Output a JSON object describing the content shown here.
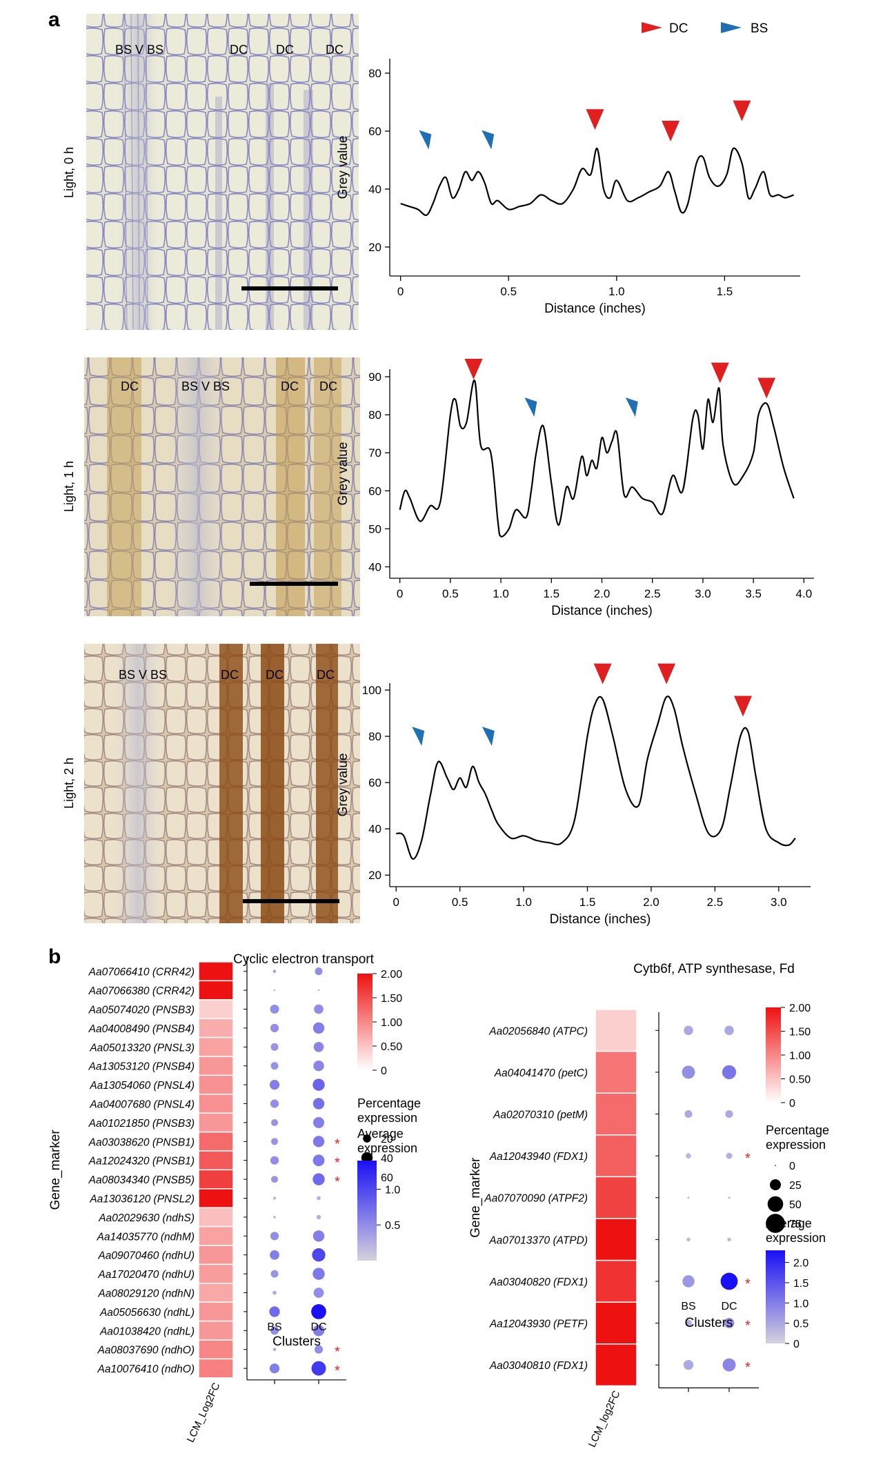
{
  "panel_a_label": "a",
  "panel_b_label": "b",
  "legend": {
    "dc": "DC",
    "bs": "BS",
    "dc_color": "#e02020",
    "bs_color": "#1f6fb5"
  },
  "micrographs": [
    {
      "condition": "Light, 0 h",
      "labels": [
        "BS V BS",
        "DC",
        "DC",
        "DC"
      ],
      "stain": "pale blue-grey"
    },
    {
      "condition": "Light, 1 h",
      "labels": [
        "DC",
        "BS V BS",
        "DC",
        "DC"
      ],
      "stain": "tan-yellow"
    },
    {
      "condition": "Light, 2 h",
      "labels": [
        "BS V BS",
        "DC",
        "DC",
        "DC"
      ],
      "stain": "brown"
    }
  ],
  "chart_data": [
    {
      "type": "line",
      "title": "Light, 0 h",
      "xlabel": "Distance (inches)",
      "ylabel": "Grey value",
      "xlim": [
        -0.05,
        1.85
      ],
      "ylim": [
        10,
        85
      ],
      "xticks": [
        0,
        0.5,
        1.0,
        1.5
      ],
      "xtick_labels": [
        "0",
        "0.5",
        "1.0",
        "1.5"
      ],
      "yticks": [
        20,
        40,
        60,
        80
      ],
      "x": [
        0.0,
        0.04,
        0.08,
        0.12,
        0.15,
        0.18,
        0.21,
        0.24,
        0.27,
        0.3,
        0.33,
        0.36,
        0.39,
        0.42,
        0.45,
        0.5,
        0.55,
        0.6,
        0.65,
        0.7,
        0.75,
        0.8,
        0.84,
        0.88,
        0.91,
        0.94,
        0.97,
        1.0,
        1.05,
        1.1,
        1.15,
        1.2,
        1.24,
        1.27,
        1.3,
        1.33,
        1.37,
        1.4,
        1.43,
        1.47,
        1.51,
        1.54,
        1.58,
        1.61,
        1.64,
        1.68,
        1.71,
        1.75,
        1.78,
        1.82
      ],
      "y": [
        35,
        34,
        33,
        31,
        35,
        41,
        44,
        37,
        40,
        46,
        43,
        46,
        42,
        35,
        36,
        33,
        34,
        35,
        38,
        36,
        35,
        40,
        47,
        45,
        54,
        40,
        37,
        43,
        36,
        37,
        39,
        41,
        46,
        39,
        32,
        35,
        49,
        51,
        44,
        41,
        45,
        54,
        49,
        37,
        40,
        46,
        38,
        38,
        37,
        38
      ],
      "markers": [
        {
          "x": 0.13,
          "y": 57,
          "kind": "BS"
        },
        {
          "x": 0.42,
          "y": 57,
          "kind": "BS"
        },
        {
          "x": 0.9,
          "y": 64,
          "kind": "DC"
        },
        {
          "x": 1.25,
          "y": 60,
          "kind": "DC"
        },
        {
          "x": 1.58,
          "y": 67,
          "kind": "DC"
        }
      ]
    },
    {
      "type": "line",
      "title": "Light, 1 h",
      "xlabel": "Distance (inches)",
      "ylabel": "Grey value",
      "xlim": [
        -0.1,
        4.1
      ],
      "ylim": [
        37,
        92
      ],
      "xticks": [
        0,
        0.5,
        1.0,
        1.5,
        2.0,
        2.5,
        3.0,
        3.5,
        4.0
      ],
      "xtick_labels": [
        "0",
        "0.5",
        "1.0",
        "1.5",
        "2.0",
        "2.5",
        "3.0",
        "3.5",
        "4.0"
      ],
      "yticks": [
        40,
        50,
        60,
        70,
        80,
        90
      ],
      "x": [
        0.0,
        0.05,
        0.1,
        0.2,
        0.3,
        0.4,
        0.5,
        0.55,
        0.6,
        0.66,
        0.74,
        0.8,
        0.9,
        0.97,
        1.0,
        1.08,
        1.15,
        1.25,
        1.3,
        1.35,
        1.42,
        1.5,
        1.57,
        1.65,
        1.72,
        1.8,
        1.85,
        1.9,
        1.95,
        2.0,
        2.05,
        2.1,
        2.15,
        2.22,
        2.3,
        2.4,
        2.5,
        2.6,
        2.7,
        2.8,
        2.9,
        2.95,
        3.0,
        3.05,
        3.1,
        3.16,
        3.2,
        3.3,
        3.4,
        3.5,
        3.55,
        3.63,
        3.7,
        3.8,
        3.9
      ],
      "y": [
        55,
        60,
        58,
        52,
        56,
        57,
        80,
        84,
        77,
        78,
        89,
        72,
        70,
        52,
        48,
        50,
        55,
        53,
        60,
        70,
        77,
        62,
        51,
        61,
        58,
        69,
        64,
        68,
        66,
        74,
        70,
        73,
        75,
        59,
        61,
        58,
        57,
        54,
        64,
        60,
        79,
        80,
        71,
        84,
        78,
        87,
        72,
        62,
        64,
        70,
        80,
        83,
        77,
        66,
        58
      ],
      "markers": [
        {
          "x": 0.73,
          "y": 92,
          "kind": "DC"
        },
        {
          "x": 1.33,
          "y": 82,
          "kind": "BS"
        },
        {
          "x": 2.33,
          "y": 82,
          "kind": "BS"
        },
        {
          "x": 3.17,
          "y": 91,
          "kind": "DC"
        },
        {
          "x": 3.63,
          "y": 87,
          "kind": "DC"
        }
      ]
    },
    {
      "type": "line",
      "title": "Light, 2 h",
      "xlabel": "Distance (inches)",
      "ylabel": "Grey value",
      "xlim": [
        -0.05,
        3.25
      ],
      "ylim": [
        15,
        103
      ],
      "xticks": [
        0,
        0.5,
        1.0,
        1.5,
        2.0,
        2.5,
        3.0
      ],
      "xtick_labels": [
        "0",
        "0.5",
        "1.0",
        "1.5",
        "2.0",
        "2.5",
        "3.0"
      ],
      "yticks": [
        20,
        40,
        60,
        80,
        100
      ],
      "x": [
        0.0,
        0.06,
        0.13,
        0.2,
        0.27,
        0.33,
        0.4,
        0.45,
        0.5,
        0.55,
        0.6,
        0.65,
        0.7,
        0.75,
        0.8,
        0.9,
        1.0,
        1.1,
        1.2,
        1.3,
        1.4,
        1.5,
        1.56,
        1.62,
        1.7,
        1.8,
        1.9,
        1.97,
        2.05,
        2.12,
        2.18,
        2.25,
        2.35,
        2.45,
        2.55,
        2.62,
        2.7,
        2.76,
        2.82,
        2.9,
        3.0,
        3.08,
        3.13
      ],
      "y": [
        38,
        37,
        27,
        35,
        55,
        69,
        62,
        57,
        62,
        58,
        67,
        60,
        55,
        48,
        42,
        36,
        37,
        35,
        34,
        34,
        44,
        80,
        94,
        96,
        80,
        57,
        50,
        70,
        85,
        97,
        92,
        75,
        55,
        38,
        40,
        58,
        80,
        82,
        63,
        40,
        34,
        33,
        36
      ],
      "markers": [
        {
          "x": 0.2,
          "y": 80,
          "kind": "BS"
        },
        {
          "x": 0.75,
          "y": 80,
          "kind": "BS"
        },
        {
          "x": 1.62,
          "y": 107,
          "kind": "DC"
        },
        {
          "x": 2.12,
          "y": 107,
          "kind": "DC"
        },
        {
          "x": 2.72,
          "y": 93,
          "kind": "DC"
        }
      ]
    },
    {
      "type": "heatmap",
      "title": "Cyclic electron transport",
      "ylabel": "Gene_marker",
      "heat_xlabel": "LCM_Log2FC",
      "xlabel": "Clusters",
      "clusters": [
        "BS",
        "DC"
      ],
      "genes": [
        "Aa07066410 (CRR42)",
        "Aa07066380 (CRR42)",
        "Aa05074020 (PNSB3)",
        "Aa04008490 (PNSB4)",
        "Aa05013320 (PNSL3)",
        "Aa13053120 (PNSB4)",
        "Aa13054060 (PNSL4)",
        "Aa04007680 (PNSL4)",
        "Aa01021850 (PNSB3)",
        "Aa03038620 (PNSB1)",
        "Aa12024320 (PNSB1)",
        "Aa08034340 (PNSB5)",
        "Aa13036120 (PNSL2)",
        "Aa02029630 (ndhS)",
        "Aa14035770 (ndhM)",
        "Aa09070460 (ndhU)",
        "Aa17020470 (ndhU)",
        "Aa08029120 (ndhN)",
        "Aa05056630 (ndhL)",
        "Aa01038420 (ndhL)",
        "Aa08037690 (ndhO)",
        "Aa10076410 (ndhO)"
      ],
      "log2fc": [
        2.0,
        2.0,
        0.3,
        0.6,
        0.7,
        0.8,
        0.85,
        0.85,
        0.8,
        1.2,
        1.35,
        1.6,
        2.0,
        0.45,
        0.7,
        0.8,
        0.75,
        0.65,
        0.8,
        0.8,
        0.95,
        1.0
      ],
      "pct_bs": [
        3,
        1,
        25,
        22,
        18,
        18,
        30,
        22,
        15,
        15,
        22,
        15,
        3,
        2,
        22,
        28,
        18,
        5,
        35,
        22,
        3,
        30
      ],
      "avg_bs": [
        0.4,
        0.2,
        0.5,
        0.5,
        0.45,
        0.45,
        0.6,
        0.5,
        0.45,
        0.45,
        0.5,
        0.45,
        0.2,
        0.2,
        0.5,
        0.6,
        0.45,
        0.3,
        0.75,
        0.5,
        0.3,
        0.6
      ],
      "pct_dc": [
        18,
        1,
        28,
        40,
        32,
        35,
        45,
        40,
        38,
        40,
        42,
        45,
        5,
        6,
        40,
        55,
        45,
        32,
        70,
        40,
        22,
        65
      ],
      "avg_dc": [
        0.5,
        0.2,
        0.5,
        0.6,
        0.55,
        0.55,
        0.8,
        0.7,
        0.6,
        0.65,
        0.65,
        0.75,
        0.25,
        0.25,
        0.6,
        1.0,
        0.65,
        0.5,
        1.4,
        0.6,
        0.5,
        1.1
      ],
      "significant_dc": [
        false,
        false,
        false,
        false,
        false,
        false,
        false,
        false,
        false,
        true,
        true,
        true,
        false,
        false,
        false,
        false,
        false,
        false,
        false,
        false,
        true,
        true
      ],
      "heat_legend": {
        "range": [
          0,
          2.0
        ],
        "ticks": [
          "2.00",
          "1.50",
          "1.00",
          "0.50",
          "0"
        ]
      },
      "size_legend": {
        "title": "Percentage expression",
        "values": [
          20,
          40,
          60
        ]
      },
      "color_legend": {
        "title": "Average expression",
        "range": [
          0,
          1.4
        ],
        "ticks": [
          "1.0",
          "0.5"
        ]
      }
    },
    {
      "type": "heatmap",
      "title": "Cytb6f, ATP synthesase, Fd",
      "ylabel": "Gene_marker",
      "heat_xlabel": "LCM_log2FC",
      "xlabel": "Clusters",
      "clusters": [
        "BS",
        "DC"
      ],
      "genes": [
        "Aa02056840 (ATPC)",
        "Aa04041470 (petC)",
        "Aa02070310 (petM)",
        "Aa12043940 (FDX1)",
        "Aa07070090 (ATPF2)",
        "Aa07013370 (ATPD)",
        "Aa03040820 (FDX1)",
        "Aa12043930 (PETF)",
        "Aa03040810 (FDX1)"
      ],
      "log2fc": [
        0.3,
        1.1,
        1.2,
        1.3,
        1.55,
        2.0,
        1.7,
        2.0,
        2.0
      ],
      "pct_bs": [
        18,
        35,
        12,
        6,
        1,
        3,
        30,
        10,
        20
      ],
      "avg_bs": [
        0.5,
        0.8,
        0.5,
        0.3,
        0.2,
        0.3,
        0.7,
        0.4,
        0.5
      ],
      "pct_dc": [
        18,
        40,
        12,
        8,
        1,
        3,
        60,
        22,
        35
      ],
      "avg_dc": [
        0.5,
        1.1,
        0.5,
        0.4,
        0.2,
        0.3,
        2.3,
        0.8,
        0.9
      ],
      "significant_dc": [
        false,
        false,
        false,
        true,
        false,
        false,
        true,
        true,
        true
      ],
      "heat_legend": {
        "range": [
          0,
          2.0
        ],
        "ticks": [
          "2.00",
          "1.50",
          "1.00",
          "0.50",
          "0"
        ]
      },
      "size_legend": {
        "title": "Percentage expression",
        "values": [
          0,
          25,
          50,
          75
        ]
      },
      "color_legend": {
        "title": "Average expression",
        "range": [
          0,
          2.3
        ],
        "ticks": [
          "2.0",
          "1.5",
          "1.0",
          "0.5",
          "0"
        ]
      }
    }
  ]
}
